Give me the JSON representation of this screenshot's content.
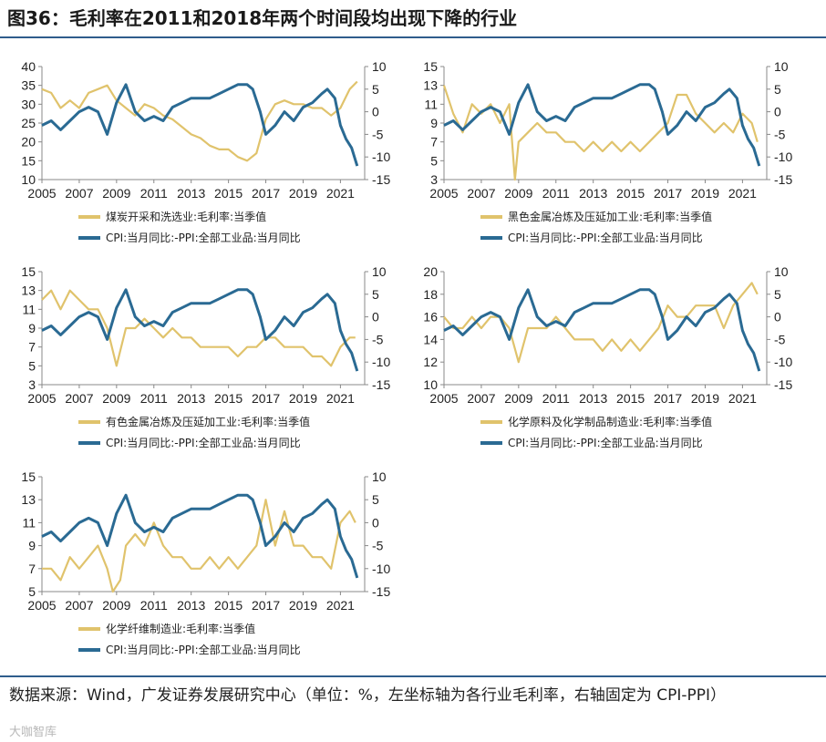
{
  "figure": {
    "title": "图36：毛利率在2011和2018年两个时间段均出现下降的行业",
    "source": "数据来源：Wind，广发证券发展研究中心（单位：%，左坐标轴为各行业毛利率，右轴固定为 CPI-PPI）",
    "watermark": "大咖智库"
  },
  "colors": {
    "margin": "#e0c36c",
    "cpi_ppi": "#2a6a93"
  },
  "chart_data": [
    {
      "type": "line",
      "panel": "coal",
      "xlim": [
        2005,
        2022.3
      ],
      "xticks": [
        "2005",
        "2007",
        "2009",
        "2011",
        "2013",
        "2015",
        "2017",
        "2019",
        "2021"
      ],
      "ylim_left": [
        10,
        40
      ],
      "yticks_left": [
        "40",
        "35",
        "30",
        "25",
        "20",
        "15",
        "10"
      ],
      "ylim_right": [
        -15,
        10
      ],
      "yticks_right": [
        "10",
        "5",
        "0",
        "-5",
        "-10",
        "-15"
      ],
      "series": [
        {
          "name": "煤炭开采和洗选业:毛利率:当季值",
          "axis": "left",
          "x": [
            2005.0,
            2005.5,
            2006.0,
            2006.5,
            2007.0,
            2007.5,
            2008.0,
            2008.5,
            2009.0,
            2009.5,
            2010.0,
            2010.5,
            2011.0,
            2011.5,
            2012.0,
            2012.5,
            2013.0,
            2013.5,
            2014.0,
            2014.5,
            2015.0,
            2015.5,
            2016.0,
            2016.5,
            2017.0,
            2017.5,
            2018.0,
            2018.5,
            2019.0,
            2019.5,
            2020.0,
            2020.5,
            2021.0,
            2021.5,
            2021.9
          ],
          "y": [
            34,
            33,
            29,
            31,
            29,
            33,
            34,
            35,
            31,
            29,
            27,
            30,
            29,
            27,
            26,
            24,
            22,
            21,
            19,
            18,
            18,
            16,
            15,
            17,
            26,
            30,
            31,
            30,
            30,
            29,
            29,
            27,
            29,
            34,
            36
          ]
        },
        {
          "name": "CPI:当月同比:-PPI:全部工业品:当月同比",
          "axis": "right",
          "x": [
            2005.0,
            2005.5,
            2006.0,
            2006.5,
            2007.0,
            2007.5,
            2008.0,
            2008.5,
            2009.0,
            2009.5,
            2010.0,
            2010.5,
            2011.0,
            2011.5,
            2012.0,
            2012.5,
            2013.0,
            2013.5,
            2014.0,
            2014.5,
            2015.0,
            2015.5,
            2016.0,
            2016.3,
            2016.7,
            2017.0,
            2017.5,
            2018.0,
            2018.5,
            2019.0,
            2019.5,
            2020.0,
            2020.3,
            2020.7,
            2021.0,
            2021.3,
            2021.6,
            2021.9
          ],
          "y": [
            -3,
            -2,
            -4,
            -2,
            0,
            1,
            0,
            -5,
            2,
            6,
            0,
            -2,
            -1,
            -2,
            1,
            2,
            3,
            3,
            3,
            4,
            5,
            6,
            6,
            5,
            0,
            -5,
            -3,
            0,
            -2,
            1,
            2,
            4,
            5,
            3,
            -3,
            -6,
            -8,
            -12
          ]
        }
      ]
    },
    {
      "type": "line",
      "panel": "ferrous",
      "xlim": [
        2005,
        2022.3
      ],
      "xticks": [
        "2005",
        "2007",
        "2009",
        "2011",
        "2013",
        "2015",
        "2017",
        "2019",
        "2021"
      ],
      "ylim_left": [
        3,
        15
      ],
      "yticks_left": [
        "15",
        "13",
        "11",
        "9",
        "7",
        "5",
        "3"
      ],
      "ylim_right": [
        -15,
        10
      ],
      "yticks_right": [
        "10",
        "5",
        "0",
        "-5",
        "-10",
        "-15"
      ],
      "series": [
        {
          "name": "黑色金属冶炼及压延加工业:毛利率:当季值",
          "axis": "left",
          "x": [
            2005.0,
            2005.5,
            2006.0,
            2006.5,
            2007.0,
            2007.5,
            2008.0,
            2008.5,
            2008.8,
            2009.0,
            2009.5,
            2010.0,
            2010.5,
            2011.0,
            2011.5,
            2012.0,
            2012.5,
            2013.0,
            2013.5,
            2014.0,
            2014.5,
            2015.0,
            2015.5,
            2016.0,
            2016.5,
            2017.0,
            2017.5,
            2018.0,
            2018.5,
            2019.0,
            2019.5,
            2020.0,
            2020.5,
            2021.0,
            2021.5,
            2021.8
          ],
          "y": [
            13,
            10,
            8,
            11,
            10,
            11,
            9,
            11,
            3,
            7,
            8,
            9,
            8,
            8,
            7,
            7,
            6,
            7,
            6,
            7,
            6,
            7,
            6,
            7,
            8,
            9,
            12,
            12,
            10,
            9,
            8,
            9,
            8,
            10,
            9,
            7
          ]
        },
        {
          "name": "CPI:当月同比:-PPI:全部工业品:当月同比",
          "axis": "right",
          "x": [
            2005.0,
            2005.5,
            2006.0,
            2006.5,
            2007.0,
            2007.5,
            2008.0,
            2008.5,
            2009.0,
            2009.5,
            2010.0,
            2010.5,
            2011.0,
            2011.5,
            2012.0,
            2012.5,
            2013.0,
            2013.5,
            2014.0,
            2014.5,
            2015.0,
            2015.5,
            2016.0,
            2016.3,
            2016.7,
            2017.0,
            2017.5,
            2018.0,
            2018.5,
            2019.0,
            2019.5,
            2020.0,
            2020.3,
            2020.7,
            2021.0,
            2021.3,
            2021.6,
            2021.9
          ],
          "y": [
            -3,
            -2,
            -4,
            -2,
            0,
            1,
            0,
            -5,
            2,
            6,
            0,
            -2,
            -1,
            -2,
            1,
            2,
            3,
            3,
            3,
            4,
            5,
            6,
            6,
            5,
            0,
            -5,
            -3,
            0,
            -2,
            1,
            2,
            4,
            5,
            3,
            -3,
            -6,
            -8,
            -12
          ]
        }
      ]
    },
    {
      "type": "line",
      "panel": "nonferrous",
      "xlim": [
        2005,
        2022.3
      ],
      "xticks": [
        "2005",
        "2007",
        "2009",
        "2011",
        "2013",
        "2015",
        "2017",
        "2019",
        "2021"
      ],
      "ylim_left": [
        3,
        15
      ],
      "yticks_left": [
        "15",
        "13",
        "11",
        "9",
        "7",
        "5",
        "3"
      ],
      "ylim_right": [
        -15,
        10
      ],
      "yticks_right": [
        "10",
        "5",
        "0",
        "-5",
        "-10",
        "-15"
      ],
      "series": [
        {
          "name": "有色金属冶炼及压延加工业:毛利率:当季值",
          "axis": "left",
          "x": [
            2005.0,
            2005.5,
            2006.0,
            2006.5,
            2007.0,
            2007.5,
            2008.0,
            2008.5,
            2009.0,
            2009.5,
            2010.0,
            2010.5,
            2011.0,
            2011.5,
            2012.0,
            2012.5,
            2013.0,
            2013.5,
            2014.0,
            2014.5,
            2015.0,
            2015.5,
            2016.0,
            2016.5,
            2017.0,
            2017.5,
            2018.0,
            2018.5,
            2019.0,
            2019.5,
            2020.0,
            2020.5,
            2021.0,
            2021.5,
            2021.8
          ],
          "y": [
            12,
            13,
            11,
            13,
            12,
            11,
            11,
            9,
            5,
            9,
            9,
            10,
            9,
            8,
            9,
            8,
            8,
            7,
            7,
            7,
            7,
            6,
            7,
            7,
            8,
            8,
            7,
            7,
            7,
            6,
            6,
            5,
            7,
            8,
            8
          ]
        },
        {
          "name": "CPI:当月同比:-PPI:全部工业品:当月同比",
          "axis": "right",
          "x": [
            2005.0,
            2005.5,
            2006.0,
            2006.5,
            2007.0,
            2007.5,
            2008.0,
            2008.5,
            2009.0,
            2009.5,
            2010.0,
            2010.5,
            2011.0,
            2011.5,
            2012.0,
            2012.5,
            2013.0,
            2013.5,
            2014.0,
            2014.5,
            2015.0,
            2015.5,
            2016.0,
            2016.3,
            2016.7,
            2017.0,
            2017.5,
            2018.0,
            2018.5,
            2019.0,
            2019.5,
            2020.0,
            2020.3,
            2020.7,
            2021.0,
            2021.3,
            2021.6,
            2021.9
          ],
          "y": [
            -3,
            -2,
            -4,
            -2,
            0,
            1,
            0,
            -5,
            2,
            6,
            0,
            -2,
            -1,
            -2,
            1,
            2,
            3,
            3,
            3,
            4,
            5,
            6,
            6,
            5,
            0,
            -5,
            -3,
            0,
            -2,
            1,
            2,
            4,
            5,
            3,
            -3,
            -6,
            -8,
            -12
          ]
        }
      ]
    },
    {
      "type": "line",
      "panel": "chemical",
      "xlim": [
        2005,
        2022.3
      ],
      "xticks": [
        "2005",
        "2007",
        "2009",
        "2011",
        "2013",
        "2015",
        "2017",
        "2019",
        "2021"
      ],
      "ylim_left": [
        10,
        20
      ],
      "yticks_left": [
        "20",
        "18",
        "16",
        "14",
        "12",
        "10"
      ],
      "ylim_right": [
        -15,
        10
      ],
      "yticks_right": [
        "10",
        "5",
        "0",
        "-5",
        "-10",
        "-15"
      ],
      "series": [
        {
          "name": "化学原料及化学制品制造业:毛利率:当季值",
          "axis": "left",
          "x": [
            2005.0,
            2005.5,
            2006.0,
            2006.5,
            2007.0,
            2007.5,
            2008.0,
            2008.5,
            2009.0,
            2009.5,
            2010.0,
            2010.5,
            2011.0,
            2011.5,
            2012.0,
            2012.5,
            2013.0,
            2013.5,
            2014.0,
            2014.5,
            2015.0,
            2015.5,
            2016.0,
            2016.5,
            2017.0,
            2017.5,
            2018.0,
            2018.5,
            2019.0,
            2019.5,
            2020.0,
            2020.5,
            2021.0,
            2021.5,
            2021.8
          ],
          "y": [
            16,
            15,
            15,
            16,
            15,
            16,
            16,
            15,
            12,
            15,
            15,
            15,
            16,
            15,
            14,
            14,
            14,
            13,
            14,
            13,
            14,
            13,
            14,
            15,
            17,
            16,
            16,
            17,
            17,
            17,
            15,
            17,
            18,
            19,
            18
          ]
        },
        {
          "name": "CPI:当月同比:-PPI:全部工业品:当月同比",
          "axis": "right",
          "x": [
            2005.0,
            2005.5,
            2006.0,
            2006.5,
            2007.0,
            2007.5,
            2008.0,
            2008.5,
            2009.0,
            2009.5,
            2010.0,
            2010.5,
            2011.0,
            2011.5,
            2012.0,
            2012.5,
            2013.0,
            2013.5,
            2014.0,
            2014.5,
            2015.0,
            2015.5,
            2016.0,
            2016.3,
            2016.7,
            2017.0,
            2017.5,
            2018.0,
            2018.5,
            2019.0,
            2019.5,
            2020.0,
            2020.3,
            2020.7,
            2021.0,
            2021.3,
            2021.6,
            2021.9
          ],
          "y": [
            -3,
            -2,
            -4,
            -2,
            0,
            1,
            0,
            -5,
            2,
            6,
            0,
            -2,
            -1,
            -2,
            1,
            2,
            3,
            3,
            3,
            4,
            5,
            6,
            6,
            5,
            0,
            -5,
            -3,
            0,
            -2,
            1,
            2,
            4,
            5,
            3,
            -3,
            -6,
            -8,
            -12
          ]
        }
      ]
    },
    {
      "type": "line",
      "panel": "fiber",
      "xlim": [
        2005,
        2022.3
      ],
      "xticks": [
        "2005",
        "2007",
        "2009",
        "2011",
        "2013",
        "2015",
        "2017",
        "2019",
        "2021"
      ],
      "ylim_left": [
        5,
        15
      ],
      "yticks_left": [
        "15",
        "13",
        "11",
        "9",
        "7",
        "5"
      ],
      "ylim_right": [
        -15,
        10
      ],
      "yticks_right": [
        "10",
        "5",
        "0",
        "-5",
        "-10",
        "-15"
      ],
      "series": [
        {
          "name": "化学纤维制造业:毛利率:当季值",
          "axis": "left",
          "x": [
            2005.0,
            2005.5,
            2006.0,
            2006.5,
            2007.0,
            2007.5,
            2008.0,
            2008.5,
            2008.8,
            2009.2,
            2009.5,
            2010.0,
            2010.5,
            2011.0,
            2011.5,
            2012.0,
            2012.5,
            2013.0,
            2013.5,
            2014.0,
            2014.5,
            2015.0,
            2015.5,
            2016.0,
            2016.5,
            2017.0,
            2017.5,
            2018.0,
            2018.5,
            2019.0,
            2019.5,
            2020.0,
            2020.5,
            2021.0,
            2021.5,
            2021.8
          ],
          "y": [
            7,
            7,
            6,
            8,
            7,
            8,
            9,
            7,
            5,
            6,
            9,
            10,
            9,
            11,
            9,
            8,
            8,
            7,
            7,
            8,
            7,
            8,
            7,
            8,
            9,
            13,
            9,
            12,
            9,
            9,
            8,
            8,
            7,
            11,
            12,
            11
          ]
        },
        {
          "name": "CPI:当月同比:-PPI:全部工业品:当月同比",
          "axis": "right",
          "x": [
            2005.0,
            2005.5,
            2006.0,
            2006.5,
            2007.0,
            2007.5,
            2008.0,
            2008.5,
            2009.0,
            2009.5,
            2010.0,
            2010.5,
            2011.0,
            2011.5,
            2012.0,
            2012.5,
            2013.0,
            2013.5,
            2014.0,
            2014.5,
            2015.0,
            2015.5,
            2016.0,
            2016.3,
            2016.7,
            2017.0,
            2017.5,
            2018.0,
            2018.5,
            2019.0,
            2019.5,
            2020.0,
            2020.3,
            2020.7,
            2021.0,
            2021.3,
            2021.6,
            2021.9
          ],
          "y": [
            -3,
            -2,
            -4,
            -2,
            0,
            1,
            0,
            -5,
            2,
            6,
            0,
            -2,
            -1,
            -2,
            1,
            2,
            3,
            3,
            3,
            4,
            5,
            6,
            6,
            5,
            0,
            -5,
            -3,
            0,
            -2,
            1,
            2,
            4,
            5,
            3,
            -3,
            -6,
            -8,
            -12
          ]
        }
      ]
    }
  ]
}
